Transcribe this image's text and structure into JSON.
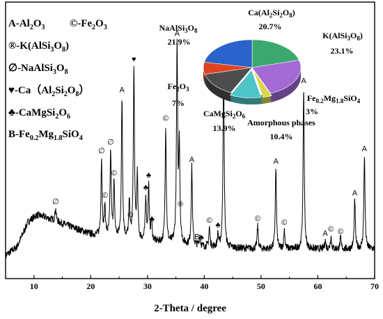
{
  "chart_data": {
    "type": "line",
    "title": "",
    "xlabel": "2-Theta / degree",
    "ylabel": "",
    "xlim": [
      5,
      70
    ],
    "x_ticks": [
      "10",
      "20",
      "30",
      "40",
      "50",
      "60",
      "70"
    ],
    "legend": {
      "placement": "top-left",
      "entries": [
        {
          "symbol": "A",
          "phase": "Al2O3"
        },
        {
          "symbol": "©",
          "phase": "Fe2O3"
        },
        {
          "symbol": "®",
          "phase": "K(AlSi3O8)"
        },
        {
          "symbol": "∅",
          "phase": "NaAlSi3O8"
        },
        {
          "symbol": "♥",
          "phase": "Ca（Al2Si2O8）"
        },
        {
          "symbol": "♣",
          "phase": "CaMgSi2O6"
        },
        {
          "symbol": "B",
          "phase": "Fe0.2Mg1.8SiO4"
        }
      ]
    },
    "pattern": {
      "noise_seed": 7,
      "background": [
        [
          5,
          0.06
        ],
        [
          7,
          0.1
        ],
        [
          9,
          0.22
        ],
        [
          10.5,
          0.25
        ],
        [
          12,
          0.24
        ],
        [
          14,
          0.22
        ],
        [
          16,
          0.2
        ],
        [
          18,
          0.18
        ],
        [
          20,
          0.16
        ],
        [
          22,
          0.15
        ],
        [
          25,
          0.14
        ],
        [
          28,
          0.13
        ],
        [
          32,
          0.12
        ],
        [
          36,
          0.11
        ],
        [
          40,
          0.1
        ],
        [
          45,
          0.095
        ],
        [
          50,
          0.09
        ],
        [
          55,
          0.09
        ],
        [
          60,
          0.09
        ],
        [
          65,
          0.09
        ],
        [
          70,
          0.09
        ]
      ],
      "peaks": [
        {
          "x": 13.8,
          "h": 0.06
        },
        {
          "x": 21.9,
          "h": 0.36
        },
        {
          "x": 22.5,
          "h": 0.14
        },
        {
          "x": 23.5,
          "h": 0.4
        },
        {
          "x": 24.1,
          "h": 0.25
        },
        {
          "x": 25.5,
          "h": 0.66
        },
        {
          "x": 26.8,
          "h": 0.17
        },
        {
          "x": 27.6,
          "h": 0.8
        },
        {
          "x": 28.2,
          "h": 0.3
        },
        {
          "x": 29.7,
          "h": 0.2
        },
        {
          "x": 30.2,
          "h": 0.26
        },
        {
          "x": 30.7,
          "h": 0.1
        },
        {
          "x": 33.2,
          "h": 0.55
        },
        {
          "x": 35.2,
          "h": 0.92
        },
        {
          "x": 35.6,
          "h": 0.46
        },
        {
          "x": 37.8,
          "h": 0.37
        },
        {
          "x": 39.2,
          "h": 0.05
        },
        {
          "x": 40.9,
          "h": 0.09
        },
        {
          "x": 42.4,
          "h": 0.06
        },
        {
          "x": 43.4,
          "h": 0.86
        },
        {
          "x": 49.4,
          "h": 0.11
        },
        {
          "x": 52.6,
          "h": 0.38
        },
        {
          "x": 54.1,
          "h": 0.09
        },
        {
          "x": 57.5,
          "h": 0.76
        },
        {
          "x": 61.3,
          "h": 0.04
        },
        {
          "x": 62.3,
          "h": 0.06
        },
        {
          "x": 64.0,
          "h": 0.05
        },
        {
          "x": 66.5,
          "h": 0.23
        },
        {
          "x": 68.2,
          "h": 0.44
        }
      ]
    },
    "peak_markers": [
      {
        "x": 13.8,
        "sym": "∅"
      },
      {
        "x": 21.9,
        "sym": "∅"
      },
      {
        "x": 23.5,
        "sym": "∅"
      },
      {
        "x": 22.5,
        "sym": "©"
      },
      {
        "x": 24.1,
        "sym": "©"
      },
      {
        "x": 25.5,
        "sym": "A"
      },
      {
        "x": 27.0,
        "sym": "©"
      },
      {
        "x": 27.6,
        "sym": "♥"
      },
      {
        "x": 29.7,
        "sym": "♣"
      },
      {
        "x": 30.2,
        "sym": "♣"
      },
      {
        "x": 30.8,
        "sym": "♣"
      },
      {
        "x": 33.2,
        "sym": "©"
      },
      {
        "x": 35.2,
        "sym": "A"
      },
      {
        "x": 35.8,
        "sym": "®"
      },
      {
        "x": 37.8,
        "sym": "A"
      },
      {
        "x": 38.7,
        "sym": "B"
      },
      {
        "x": 39.5,
        "sym": "♣"
      },
      {
        "x": 40.9,
        "sym": "©"
      },
      {
        "x": 42.4,
        "sym": "♣"
      },
      {
        "x": 43.4,
        "sym": "A"
      },
      {
        "x": 49.4,
        "sym": "©"
      },
      {
        "x": 52.6,
        "sym": "A"
      },
      {
        "x": 54.1,
        "sym": "©"
      },
      {
        "x": 57.5,
        "sym": "A"
      },
      {
        "x": 61.3,
        "sym": "A"
      },
      {
        "x": 62.3,
        "sym": "©"
      },
      {
        "x": 64.0,
        "sym": "©"
      },
      {
        "x": 66.5,
        "sym": "A"
      },
      {
        "x": 68.2,
        "sym": "A"
      }
    ],
    "inset_pie": {
      "type": "pie",
      "slices": [
        {
          "name": "Ca(Al2Si2O8)",
          "value": 20.7,
          "label": "20.7%",
          "color": "#3aa86f"
        },
        {
          "name": "K(AlSi3O8)",
          "value": 23.1,
          "label": "23.1%",
          "color": "#a36ad6"
        },
        {
          "name": "Fe0.2Mg1.8SiO4",
          "value": 3,
          "label": "3%",
          "color": "#d8d84a"
        },
        {
          "name": "Amorphous phases",
          "value": 10.4,
          "label": "10.4%",
          "color": "#4fc4c8"
        },
        {
          "name": "CaMgSi2O6",
          "value": 13.9,
          "label": "13.9%",
          "color": "#4d4d4d"
        },
        {
          "name": "Fe2O3",
          "value": 7,
          "label": "7%",
          "color": "#e0431f"
        },
        {
          "name": "NaAlSi3O8",
          "value": 21.9,
          "label": "21.9%",
          "color": "#2a63c9"
        }
      ]
    }
  }
}
